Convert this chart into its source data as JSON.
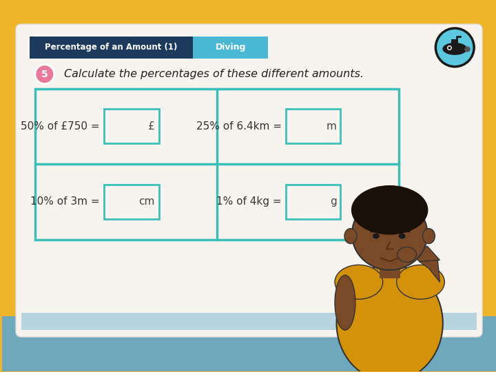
{
  "bg_outer": "#f0b429",
  "bg_card": "#f7f3ee",
  "header_dark": "#1b3a5c",
  "header_blue": "#4ab8d4",
  "teal_border": "#3bbfb8",
  "header_title": "Percentage of an Amount (1)",
  "header_subtitle": "Diving",
  "question_number": "5",
  "question_text": "Calculate the percentages of these different amounts.",
  "pink_circle": "#e8799a",
  "problems": [
    {
      "text": "50% of £750 =",
      "unit": "£",
      "row": 0,
      "col": 0
    },
    {
      "text": "25% of 6.4km =",
      "unit": "m",
      "row": 0,
      "col": 1
    },
    {
      "text": "10% of 3m =",
      "unit": "cm",
      "row": 1,
      "col": 0
    },
    {
      "text": "1% of 4kg =",
      "unit": "g",
      "row": 1,
      "col": 1
    }
  ],
  "table_bg": "#f7f3ee",
  "answer_box_color": "#3bbfb8",
  "answer_box_bg": "#f7f3ee",
  "floor_color": "#6fa8bc",
  "floor_strip": "#b8d4de",
  "sub_circle_blue": "#5cc8e0",
  "boy_skin": "#7a4a28",
  "boy_shirt": "#d4920a",
  "boy_hair": "#1a1008"
}
